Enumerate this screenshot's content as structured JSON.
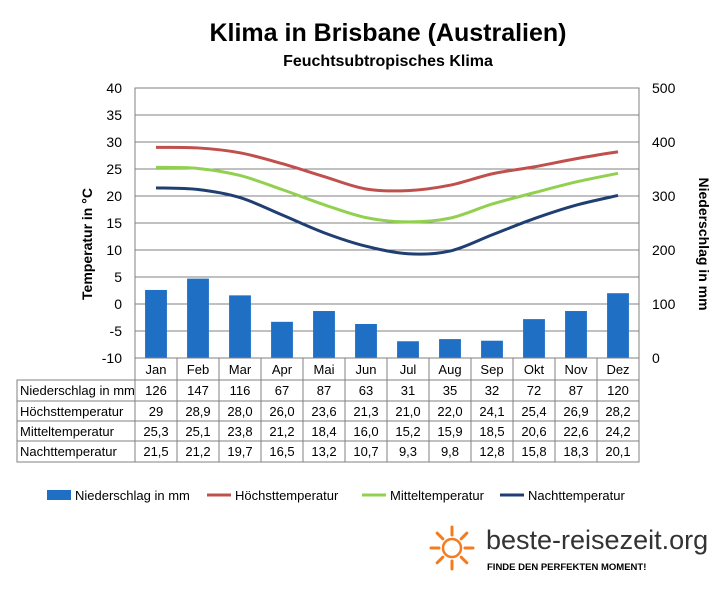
{
  "chart_data": {
    "type": "bar",
    "title": "Klima in Brisbane (Australien)",
    "subtitle": "Feuchtsubtropisches Klima",
    "categories": [
      "Jan",
      "Feb",
      "Mar",
      "Apr",
      "Mai",
      "Jun",
      "Jul",
      "Aug",
      "Sep",
      "Okt",
      "Nov",
      "Dez"
    ],
    "ylabel_left": "Temperatur in °C",
    "ylabel_right": "Niederschlag in mm",
    "ylim_left": [
      -10,
      40
    ],
    "ylim_right": [
      0,
      500
    ],
    "yticks_left": [
      "-10",
      "-5",
      "0",
      "5",
      "10",
      "15",
      "20",
      "25",
      "30",
      "35",
      "40"
    ],
    "yticks_right": [
      "0",
      "100",
      "200",
      "300",
      "400",
      "500"
    ],
    "grid": true,
    "legend_position": "bottom",
    "series": [
      {
        "name": "Niederschlag in mm",
        "type": "bar",
        "axis": "right",
        "color": "#1f6fc5",
        "values": [
          126,
          147,
          116,
          67,
          87,
          63,
          31,
          35,
          32,
          72,
          87,
          120
        ],
        "labels": [
          "126",
          "147",
          "116",
          "67",
          "87",
          "63",
          "31",
          "35",
          "32",
          "72",
          "87",
          "120"
        ]
      },
      {
        "name": "Höchsttemperatur",
        "type": "line",
        "axis": "left",
        "color": "#c0504d",
        "values": [
          29,
          28.9,
          28.0,
          26.0,
          23.6,
          21.3,
          21.0,
          22.0,
          24.1,
          25.4,
          26.9,
          28.2
        ],
        "labels": [
          "29",
          "28,9",
          "28,0",
          "26,0",
          "23,6",
          "21,3",
          "21,0",
          "22,0",
          "24,1",
          "25,4",
          "26,9",
          "28,2"
        ]
      },
      {
        "name": "Mitteltemperatur",
        "type": "line",
        "axis": "left",
        "color": "#92d050",
        "values": [
          25.3,
          25.1,
          23.8,
          21.2,
          18.4,
          16.0,
          15.2,
          15.9,
          18.5,
          20.6,
          22.6,
          24.2
        ],
        "labels": [
          "25,3",
          "25,1",
          "23,8",
          "21,2",
          "18,4",
          "16,0",
          "15,2",
          "15,9",
          "18,5",
          "20,6",
          "22,6",
          "24,2"
        ]
      },
      {
        "name": "Nachttemperatur",
        "type": "line",
        "axis": "left",
        "color": "#1f3f73",
        "values": [
          21.5,
          21.2,
          19.7,
          16.5,
          13.2,
          10.7,
          9.3,
          9.8,
          12.8,
          15.8,
          18.3,
          20.1
        ],
        "labels": [
          "21,5",
          "21,2",
          "19,7",
          "16,5",
          "13,2",
          "10,7",
          "9,3",
          "9,8",
          "12,8",
          "15,8",
          "18,3",
          "20,1"
        ]
      }
    ]
  },
  "branding": {
    "site": "beste-reisezeit.org",
    "tagline": "FINDE DEN PERFEKTEN MOMENT!",
    "sun_color": "#f47c20"
  }
}
